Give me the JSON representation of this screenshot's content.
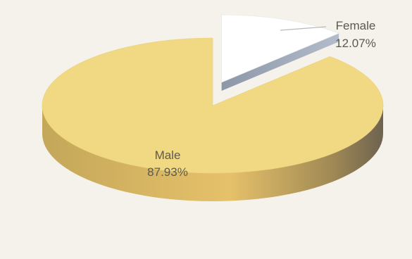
{
  "chart_data": {
    "type": "pie",
    "style": "3d",
    "slices": [
      {
        "label": "Male",
        "value": 87.93,
        "value_text": "87.93%",
        "color": "#f1d983"
      },
      {
        "label": "Female",
        "value": 12.07,
        "value_text": "12.07%",
        "color": "#ffffff",
        "exploded": true
      }
    ]
  }
}
